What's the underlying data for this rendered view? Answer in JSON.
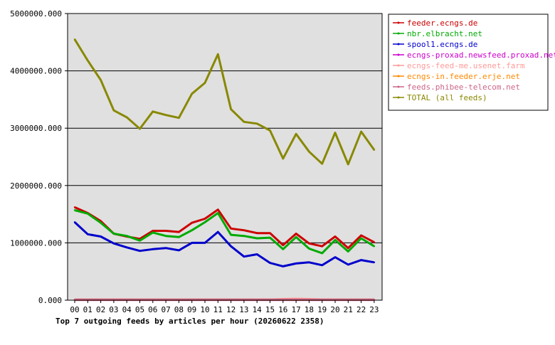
{
  "chart_data": {
    "type": "line",
    "title": "Top 7 outgoing feeds by articles per hour (20260622 2358)",
    "xlabel": "",
    "ylabel": "",
    "ylim": [
      0,
      5000000
    ],
    "y_ticks": [
      "0.000",
      "1000000.000",
      "2000000.000",
      "3000000.000",
      "4000000.000",
      "5000000.000"
    ],
    "y_tick_values": [
      0,
      1000000,
      2000000,
      3000000,
      4000000,
      5000000
    ],
    "categories": [
      "00",
      "01",
      "02",
      "03",
      "04",
      "05",
      "06",
      "07",
      "08",
      "09",
      "10",
      "11",
      "12",
      "13",
      "14",
      "15",
      "16",
      "17",
      "18",
      "19",
      "20",
      "21",
      "22",
      "23"
    ],
    "grid": true,
    "legend_position": "right",
    "plot_background": "#e0e0e0",
    "series": [
      {
        "name": "feeder.ecngs.de",
        "color": "#cc0000",
        "values": [
          1620000,
          1520000,
          1380000,
          1160000,
          1110000,
          1070000,
          1210000,
          1210000,
          1190000,
          1350000,
          1420000,
          1580000,
          1250000,
          1220000,
          1170000,
          1170000,
          960000,
          1160000,
          990000,
          940000,
          1110000,
          910000,
          1130000,
          1010000
        ]
      },
      {
        "name": "nbr.elbracht.net",
        "color": "#00aa00",
        "values": [
          1570000,
          1510000,
          1350000,
          1160000,
          1120000,
          1040000,
          1180000,
          1120000,
          1100000,
          1220000,
          1360000,
          1520000,
          1140000,
          1120000,
          1080000,
          1090000,
          890000,
          1100000,
          900000,
          820000,
          1050000,
          850000,
          1080000,
          940000
        ]
      },
      {
        "name": "spool1.ecngs.de",
        "color": "#0000cc",
        "values": [
          1360000,
          1150000,
          1110000,
          990000,
          920000,
          860000,
          890000,
          910000,
          870000,
          1000000,
          1000000,
          1190000,
          940000,
          760000,
          800000,
          650000,
          590000,
          640000,
          660000,
          610000,
          750000,
          620000,
          700000,
          660000
        ]
      },
      {
        "name": "ecngs-proxad.newsfeed.proxad.net",
        "color": "#cc00cc",
        "values": [
          5000,
          5000,
          5000,
          5000,
          5000,
          5000,
          5000,
          5000,
          5000,
          5000,
          5000,
          5000,
          5000,
          5000,
          5000,
          5000,
          5000,
          5000,
          5000,
          5000,
          5000,
          5000,
          5000,
          5000
        ]
      },
      {
        "name": "ecngs-feed-me.usenet.farm",
        "color": "#ff9999",
        "values": [
          12000,
          12000,
          12000,
          12000,
          12000,
          12000,
          12000,
          12000,
          12000,
          12000,
          12000,
          12000,
          12000,
          12000,
          12000,
          12000,
          20000,
          25000,
          20000,
          12000,
          12000,
          12000,
          12000,
          12000
        ]
      },
      {
        "name": "ecngs-in.feeder.erje.net",
        "color": "#ff8800",
        "values": [
          8000,
          8000,
          8000,
          8000,
          8000,
          8000,
          8000,
          8000,
          8000,
          8000,
          8000,
          8000,
          8000,
          8000,
          8000,
          8000,
          8000,
          8000,
          8000,
          8000,
          8000,
          8000,
          8000,
          8000
        ]
      },
      {
        "name": "feeds.phibee-telecom.net",
        "color": "#cc6688",
        "values": [
          10000,
          10000,
          10000,
          10000,
          10000,
          10000,
          10000,
          10000,
          10000,
          10000,
          10000,
          10000,
          10000,
          10000,
          10000,
          10000,
          10000,
          10000,
          10000,
          10000,
          10000,
          10000,
          10000,
          10000
        ]
      },
      {
        "name": "TOTAL (all feeds)",
        "color": "#888800",
        "values": [
          4550000,
          4180000,
          3840000,
          3310000,
          3190000,
          2990000,
          3290000,
          3230000,
          3180000,
          3600000,
          3790000,
          4290000,
          3330000,
          3110000,
          3080000,
          2960000,
          2470000,
          2900000,
          2590000,
          2380000,
          2920000,
          2370000,
          2940000,
          2620000
        ]
      }
    ]
  }
}
